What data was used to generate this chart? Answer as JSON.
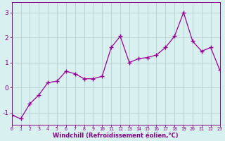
{
  "x": [
    0,
    1,
    2,
    3,
    4,
    5,
    6,
    7,
    8,
    9,
    10,
    11,
    12,
    13,
    14,
    15,
    16,
    17,
    18,
    19,
    20,
    21,
    22,
    23
  ],
  "y": [
    -1.1,
    -1.25,
    -0.65,
    -0.3,
    0.2,
    0.25,
    0.65,
    0.55,
    0.35,
    0.35,
    0.45,
    1.6,
    2.05,
    1.0,
    1.15,
    1.2,
    1.3,
    1.6,
    2.05,
    3.0,
    1.85,
    1.45,
    1.6,
    0.7
  ],
  "line_color": "#990099",
  "marker": "+",
  "marker_size": 4,
  "marker_linewidth": 1.0,
  "line_width": 0.9,
  "background_color": "#d8f0f0",
  "grid_color": "#b0c8c8",
  "xlabel": "Windchill (Refroidissement éolien,°C)",
  "xlabel_color": "#880088",
  "tick_color": "#880088",
  "xlim": [
    0,
    23
  ],
  "ylim": [
    -1.5,
    3.4
  ],
  "yticks": [
    -1,
    0,
    1,
    2,
    3
  ],
  "xticks": [
    0,
    1,
    2,
    3,
    4,
    5,
    6,
    7,
    8,
    9,
    10,
    11,
    12,
    13,
    14,
    15,
    16,
    17,
    18,
    19,
    20,
    21,
    22,
    23
  ],
  "xlabel_fontsize": 6.0,
  "ytick_fontsize": 6.5,
  "xtick_fontsize": 4.8
}
